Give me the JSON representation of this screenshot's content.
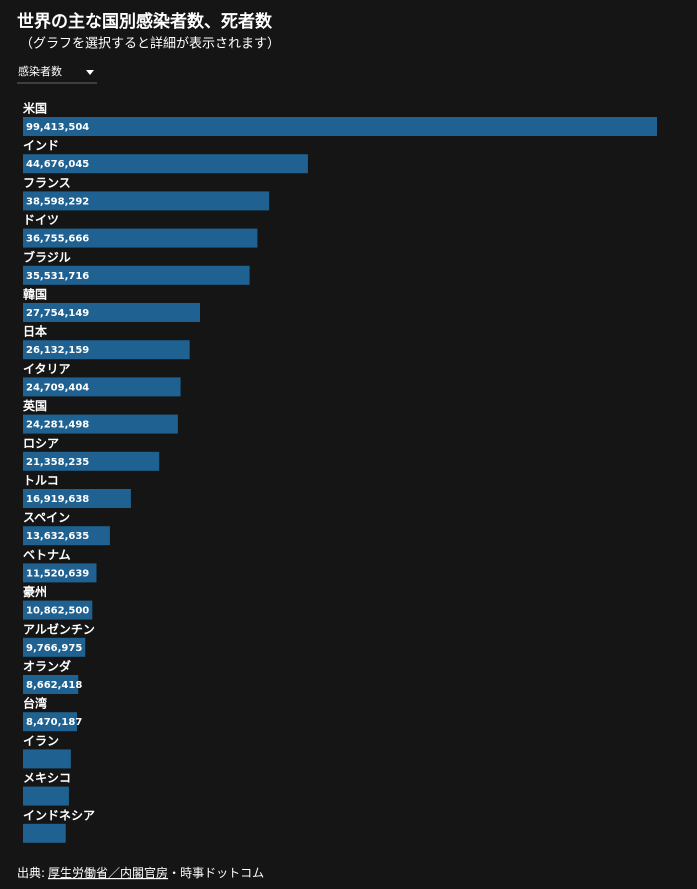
{
  "chart_data": {
    "type": "bar",
    "orientation": "horizontal",
    "title": "世界の主な国別感染者数、死者数",
    "subtitle": "（グラフを選択すると詳細が表示されます）",
    "dropdown": "感染者数",
    "categories": [
      "米国",
      "インド",
      "フランス",
      "ドイツ",
      "ブラジル",
      "韓国",
      "日本",
      "イタリア",
      "英国",
      "ロシア",
      "トルコ",
      "スペイン",
      "ベトナム",
      "豪州",
      "アルゼンチン",
      "オランダ",
      "台湾",
      "イラン",
      "メキシコ",
      "インドネシア"
    ],
    "values": [
      99413504,
      44676045,
      38598292,
      36755666,
      35531716,
      27754149,
      26132159,
      24709404,
      24281498,
      21358235,
      16919638,
      13632635,
      11520639,
      10862500,
      9766975,
      8662418,
      8470187,
      7500000,
      7200000,
      6700000
    ],
    "value_labels": [
      "99,413,504",
      "44,676,045",
      "38,598,292",
      "36,755,666",
      "35,531,716",
      "27,754,149",
      "26,132,159",
      "24,709,404",
      "24,281,498",
      "21,358,235",
      "16,919,638",
      "13,632,635",
      "11,520,639",
      "10,862,500",
      "9,766,975",
      "8,662,418",
      "8,470,187",
      null,
      null,
      null
    ],
    "color": "#1f6190",
    "source_label": "出典:",
    "source_link": "厚生労働省／内閣官房",
    "source_rest": "・時事ドットコム"
  }
}
